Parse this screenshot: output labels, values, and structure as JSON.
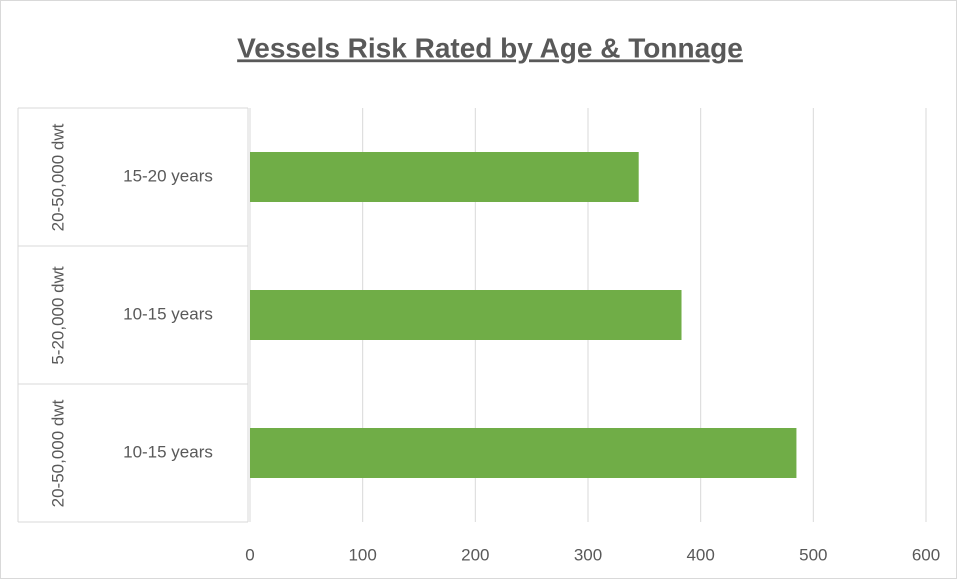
{
  "chart_data": {
    "type": "hbar",
    "title": "Vessels Risk Rated by Age & Tonnage",
    "categories": [
      "15-20 years",
      "10-15 years",
      "10-15 years"
    ],
    "groups": [
      "20-50,000 dwt",
      "5-20,000 dwt",
      "20-50,000 dwt"
    ],
    "values": [
      345,
      383,
      485
    ],
    "color": "#70ad47",
    "xlim": [
      0,
      600
    ],
    "xticks": [
      0,
      100,
      200,
      300,
      400,
      500,
      600
    ],
    "grid": true
  }
}
